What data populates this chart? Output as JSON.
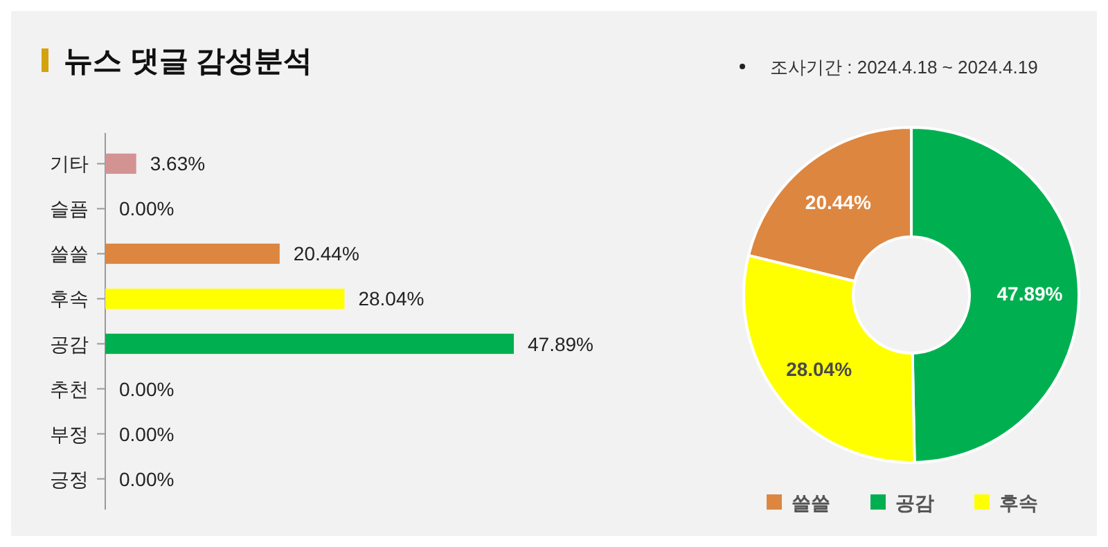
{
  "chart_data": [
    {
      "type": "bar",
      "title": "뉴스 댓글 감성분석",
      "orientation": "horizontal",
      "categories": [
        "기타",
        "슬픔",
        "쓸쓸",
        "후속",
        "공감",
        "추천",
        "부정",
        "긍정"
      ],
      "values": [
        3.63,
        0,
        20.44,
        28.04,
        47.89,
        0,
        0,
        0
      ],
      "colors": [
        "#d39393",
        "#d39393",
        "#dd8640",
        "#ffff00",
        "#00b050",
        "#00b050",
        "#00b050",
        "#00b050"
      ],
      "value_labels": [
        "3.63%",
        "0.00%",
        "20.44%",
        "28.04%",
        "47.89%",
        "0.00%",
        "0.00%",
        "0.00%"
      ]
    },
    {
      "type": "donut",
      "annotations": [
        "조사기간 : 2024.4.18 ~ 2024.4.19"
      ],
      "categories": [
        "쓸쓸",
        "공감",
        "후속"
      ],
      "values": [
        20.44,
        47.89,
        28.04
      ],
      "colors": [
        "#dd8640",
        "#00b050",
        "#ffff00"
      ],
      "value_labels": [
        "20.44%",
        "47.89%",
        "28.04%"
      ],
      "legend": "bottom"
    }
  ]
}
